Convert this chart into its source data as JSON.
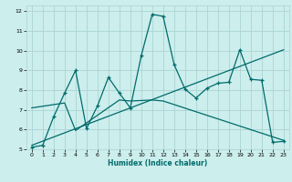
{
  "xlabel": "Humidex (Indice chaleur)",
  "xlim": [
    -0.5,
    23.5
  ],
  "ylim": [
    5,
    12.3
  ],
  "xticks": [
    0,
    1,
    2,
    3,
    4,
    5,
    6,
    7,
    8,
    9,
    10,
    11,
    12,
    13,
    14,
    15,
    16,
    17,
    18,
    19,
    20,
    21,
    22,
    23
  ],
  "yticks": [
    5,
    6,
    7,
    8,
    9,
    10,
    11,
    12
  ],
  "bg_color": "#cceeed",
  "grid_color": "#aad4d2",
  "line_color": "#006b6b",
  "series1_x": [
    0,
    1,
    2,
    3,
    4,
    5,
    6,
    7,
    8,
    9,
    10,
    11,
    12,
    13,
    14,
    15,
    16,
    17,
    18,
    19,
    20,
    21,
    22,
    23
  ],
  "series1_y": [
    5.1,
    5.2,
    6.65,
    7.85,
    9.0,
    6.05,
    7.2,
    8.65,
    7.85,
    7.1,
    9.75,
    11.85,
    11.75,
    9.3,
    8.05,
    7.6,
    8.1,
    8.35,
    8.4,
    10.05,
    8.55,
    8.5,
    5.35,
    5.4
  ],
  "series2_x": [
    0,
    23
  ],
  "series2_y": [
    5.2,
    10.05
  ],
  "series3_x": [
    0,
    3,
    4,
    8,
    9,
    11,
    12,
    23
  ],
  "series3_y": [
    7.1,
    7.35,
    5.95,
    7.5,
    7.45,
    7.5,
    7.45,
    5.45
  ]
}
